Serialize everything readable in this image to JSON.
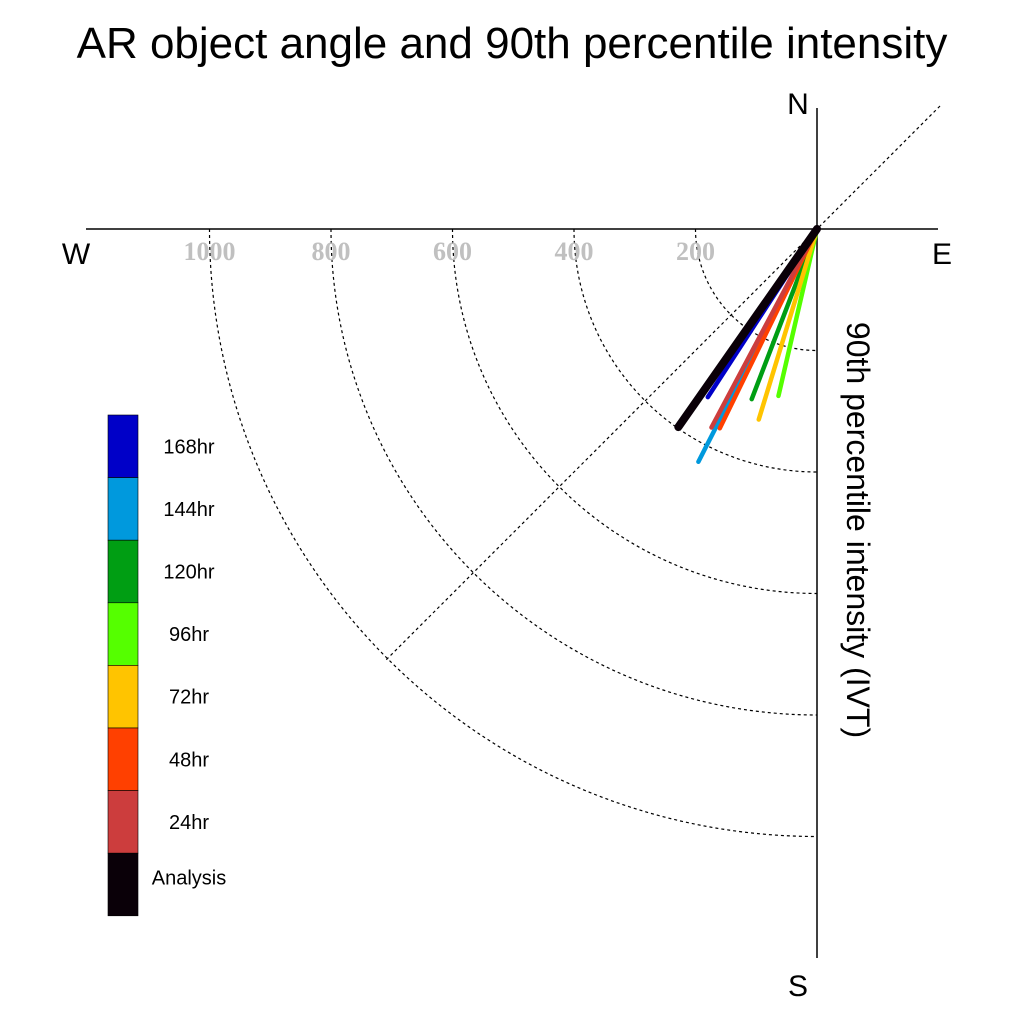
{
  "chart_data": {
    "type": "polar-vector",
    "title": "AR object angle and 90th percentile intensity",
    "radial_label": "90th percentile intensity (IVT)",
    "compass": {
      "north": "N",
      "south": "S",
      "east": "E",
      "west": "W"
    },
    "radial_ticks": [
      200,
      400,
      600,
      800,
      1000
    ],
    "radial_max": 1000,
    "grid": true,
    "legend_placement": "left",
    "series": [
      {
        "name": "168hr",
        "color": "#0000c8",
        "angle_deg": 213,
        "intensity": 330
      },
      {
        "name": "144hr",
        "color": "#0099dd",
        "angle_deg": 207,
        "intensity": 430
      },
      {
        "name": "120hr",
        "color": "#009e13",
        "angle_deg": 201,
        "intensity": 300
      },
      {
        "name": "96hr",
        "color": "#55ff00",
        "angle_deg": 193,
        "intensity": 282
      },
      {
        "name": "72hr",
        "color": "#ffc400",
        "angle_deg": 197,
        "intensity": 328
      },
      {
        "name": "48hr",
        "color": "#ff4000",
        "angle_deg": 206,
        "intensity": 365
      },
      {
        "name": "24hr",
        "color": "#cc3d3d",
        "angle_deg": 208,
        "intensity": 370
      },
      {
        "name": "Analysis",
        "color": "#0a0008",
        "angle_deg": 215,
        "intensity": 398
      }
    ]
  }
}
